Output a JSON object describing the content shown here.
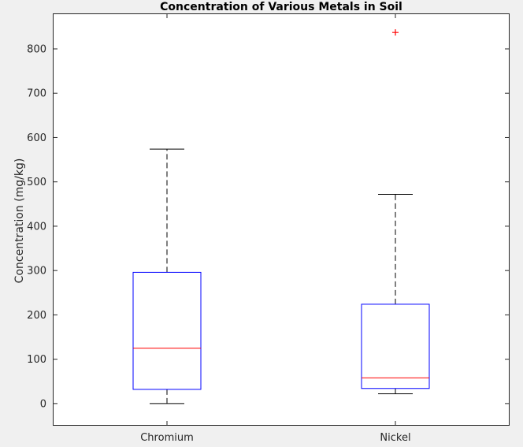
{
  "chart_data": {
    "type": "boxplot",
    "title": "Concentration of Various Metals in Soil",
    "xlabel": "",
    "ylabel": "Concentration (mg/kg)",
    "ylim": [
      -50,
      880
    ],
    "yticks": [
      0,
      100,
      200,
      300,
      400,
      500,
      600,
      700,
      800
    ],
    "categories": [
      "Chromium",
      "Nickel"
    ],
    "boxes": [
      {
        "category": "Chromium",
        "whisker_low": 0,
        "q1": 32,
        "median": 125,
        "q3": 296,
        "whisker_high": 574,
        "outliers": []
      },
      {
        "category": "Nickel",
        "whisker_low": 22,
        "q1": 34,
        "median": 58,
        "q3": 224,
        "whisker_high": 472,
        "outliers": [
          837
        ]
      }
    ],
    "grid": false,
    "colors": {
      "box": "#0000ff",
      "median": "#ff0000",
      "whisker": "#000000",
      "outlier": "#ff0000"
    }
  }
}
